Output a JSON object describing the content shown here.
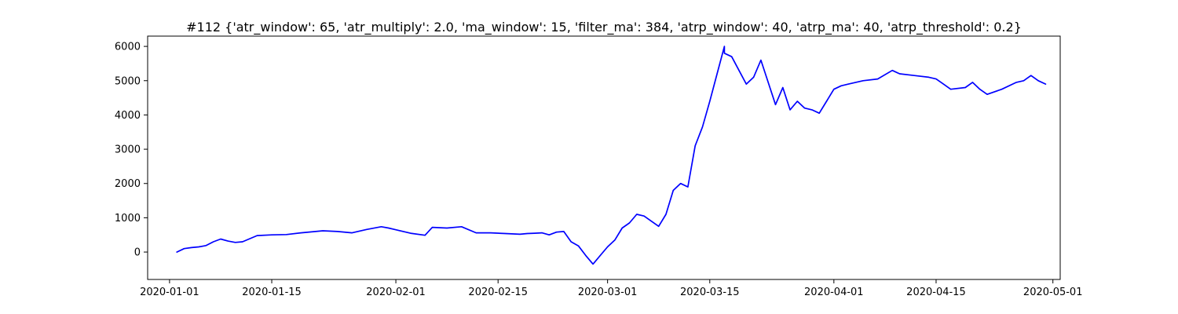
{
  "chart_data": {
    "type": "line",
    "title": "#112 {'atr_window': 65, 'atr_multiply': 2.0, 'ma_window': 15, 'filter_ma': 384, 'atrp_window': 40, 'atrp_ma': 40, 'atrp_threshold': 0.2}",
    "xlabel": "",
    "ylabel": "",
    "xlim": [
      "2019-12-29",
      "2020-05-02"
    ],
    "ylim": [
      -800,
      6300
    ],
    "grid": false,
    "legend": "none",
    "line_color": "#0000ff",
    "x_ticks": [
      "2020-01-01",
      "2020-01-15",
      "2020-02-01",
      "2020-02-15",
      "2020-03-01",
      "2020-03-15",
      "2020-04-01",
      "2020-04-15",
      "2020-05-01"
    ],
    "y_ticks": [
      0,
      1000,
      2000,
      3000,
      4000,
      5000,
      6000
    ],
    "series": [
      {
        "x": [
          "2020-01-02",
          "2020-01-03",
          "2020-01-04",
          "2020-01-05",
          "2020-01-06",
          "2020-01-07",
          "2020-01-08",
          "2020-01-09",
          "2020-01-10",
          "2020-01-11",
          "2020-01-13",
          "2020-01-15",
          "2020-01-17",
          "2020-01-19",
          "2020-01-21",
          "2020-01-22",
          "2020-01-24",
          "2020-01-26",
          "2020-01-28",
          "2020-01-30",
          "2020-01-31",
          "2020-02-01",
          "2020-02-03",
          "2020-02-05",
          "2020-02-06",
          "2020-02-08",
          "2020-02-10",
          "2020-02-12",
          "2020-02-14",
          "2020-02-16",
          "2020-02-18",
          "2020-02-19",
          "2020-02-20",
          "2020-02-21",
          "2020-02-22",
          "2020-02-23",
          "2020-02-24",
          "2020-02-25",
          "2020-02-26",
          "2020-02-27",
          "2020-02-28",
          "2020-03-01",
          "2020-03-02",
          "2020-03-03",
          "2020-03-04",
          "2020-03-05",
          "2020-03-06",
          "2020-03-08",
          "2020-03-09",
          "2020-03-10",
          "2020-03-11",
          "2020-03-12",
          "2020-03-13",
          "2020-03-14",
          "2020-03-15",
          "2020-03-16",
          "2020-03-17",
          "2020-03-17",
          "2020-03-18",
          "2020-03-19",
          "2020-03-20",
          "2020-03-21",
          "2020-03-22",
          "2020-03-24",
          "2020-03-25",
          "2020-03-26",
          "2020-03-27",
          "2020-03-28",
          "2020-03-29",
          "2020-03-30",
          "2020-03-31",
          "2020-04-01",
          "2020-04-02",
          "2020-04-03",
          "2020-04-05",
          "2020-04-07",
          "2020-04-09",
          "2020-04-10",
          "2020-04-12",
          "2020-04-14",
          "2020-04-15",
          "2020-04-16",
          "2020-04-17",
          "2020-04-19",
          "2020-04-20",
          "2020-04-21",
          "2020-04-22",
          "2020-04-24",
          "2020-04-26",
          "2020-04-27",
          "2020-04-28",
          "2020-04-29",
          "2020-04-30"
        ],
        "values": [
          0,
          100,
          130,
          150,
          190,
          300,
          380,
          320,
          280,
          300,
          480,
          500,
          510,
          560,
          600,
          620,
          600,
          560,
          660,
          740,
          700,
          650,
          550,
          490,
          720,
          700,
          740,
          560,
          560,
          540,
          520,
          540,
          550,
          560,
          500,
          580,
          600,
          300,
          180,
          -100,
          -350,
          150,
          350,
          700,
          850,
          1100,
          1050,
          750,
          1100,
          1800,
          2000,
          1900,
          3100,
          3650,
          4400,
          5200,
          6000,
          5800,
          5700,
          5300,
          4900,
          5100,
          5600,
          4300,
          4800,
          4150,
          4400,
          4200,
          4150,
          4050,
          4400,
          4750,
          4850,
          4900,
          5000,
          5050,
          5300,
          5200,
          5150,
          5100,
          5050,
          4900,
          4750,
          4800,
          4950,
          4750,
          4600,
          4750,
          4950,
          5000,
          5150,
          5000,
          4900
        ]
      }
    ]
  }
}
